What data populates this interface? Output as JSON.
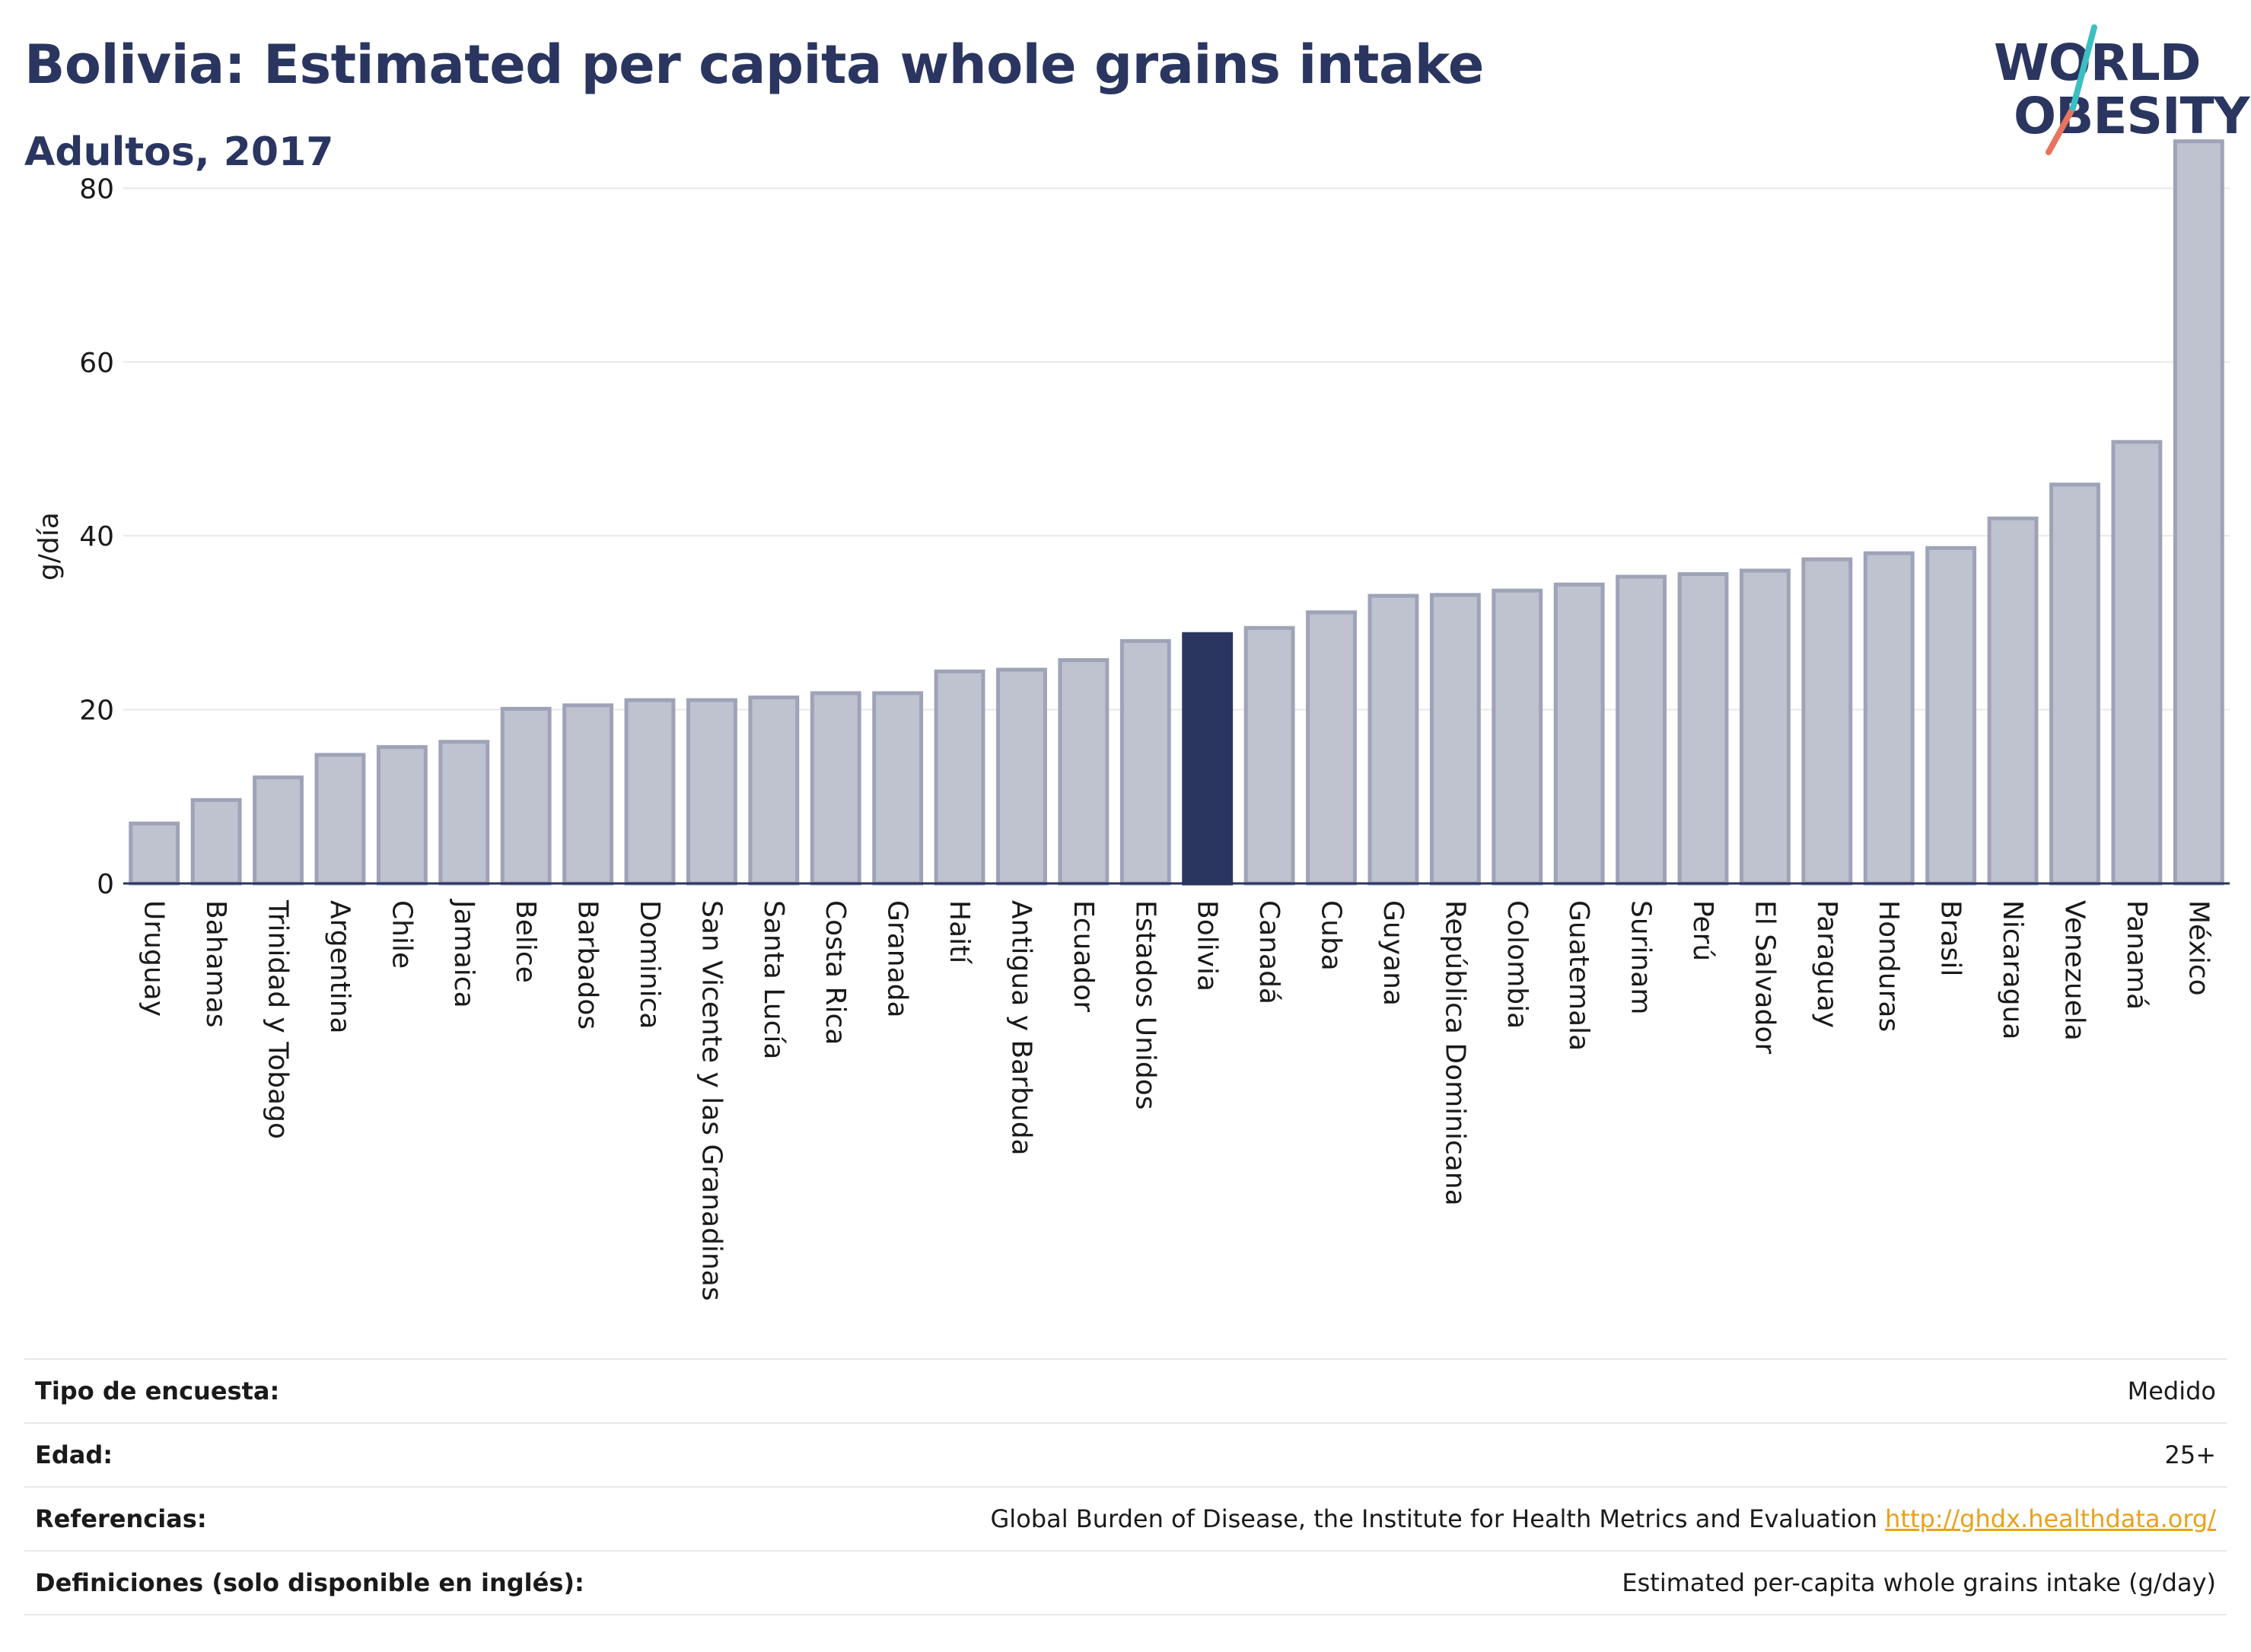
{
  "header": {
    "title": "Bolivia: Estimated per capita whole grains intake",
    "subtitle": "Adultos, 2017",
    "logo_line1": "WORLD",
    "logo_line2": "OBESITY"
  },
  "colors": {
    "title": "#2a3560",
    "bar": "#bfc2cf",
    "bar_border": "#9ea3b8",
    "highlight": "#2a3560",
    "grid": "#e6e8ec",
    "link": "#e8a21c",
    "logo_teal": "#3bbfc1",
    "logo_coral": "#e8735e"
  },
  "chart_data": {
    "type": "bar",
    "ylabel": "g/día",
    "xlabel": "",
    "ylim": [
      0,
      88
    ],
    "yticks": [
      0,
      20,
      40,
      60,
      80
    ],
    "grid": true,
    "highlight": "Bolivia",
    "categories": [
      "Uruguay",
      "Bahamas",
      "Trinidad y Tobago",
      "Argentina",
      "Chile",
      "Jamaica",
      "Belice",
      "Barbados",
      "Dominica",
      "San Vicente y las Granadinas",
      "Santa Lucía",
      "Costa Rica",
      "Granada",
      "Haití",
      "Antigua y Barbuda",
      "Ecuador",
      "Estados Unidos",
      "Bolivia",
      "Canadá",
      "Cuba",
      "Guyana",
      "República Dominicana",
      "Colombia",
      "Guatemala",
      "Surinam",
      "Perú",
      "El Salvador",
      "Paraguay",
      "Honduras",
      "Brasil",
      "Nicaragua",
      "Venezuela",
      "Panamá",
      "México"
    ],
    "values": [
      6.9,
      9.6,
      12.2,
      14.8,
      15.7,
      16.3,
      20.1,
      20.5,
      21.1,
      21.1,
      21.4,
      21.9,
      21.9,
      24.4,
      24.6,
      25.7,
      27.9,
      28.7,
      29.4,
      31.2,
      33.1,
      33.2,
      33.7,
      34.4,
      35.3,
      35.6,
      36.0,
      37.3,
      38.0,
      38.6,
      42.0,
      45.9,
      50.8,
      85.4
    ]
  },
  "info": {
    "rows": [
      {
        "label": "Tipo de encuesta:",
        "value": "Medido"
      },
      {
        "label": "Edad:",
        "value": "25+"
      },
      {
        "label": "Referencias:",
        "value": "Global Burden of Disease, the Institute for Health Metrics and Evaluation",
        "link": "http://ghdx.healthdata.org/"
      },
      {
        "label": "Definiciones (solo disponible en inglés):",
        "value": "Estimated per-capita whole grains intake (g/day)"
      }
    ]
  }
}
